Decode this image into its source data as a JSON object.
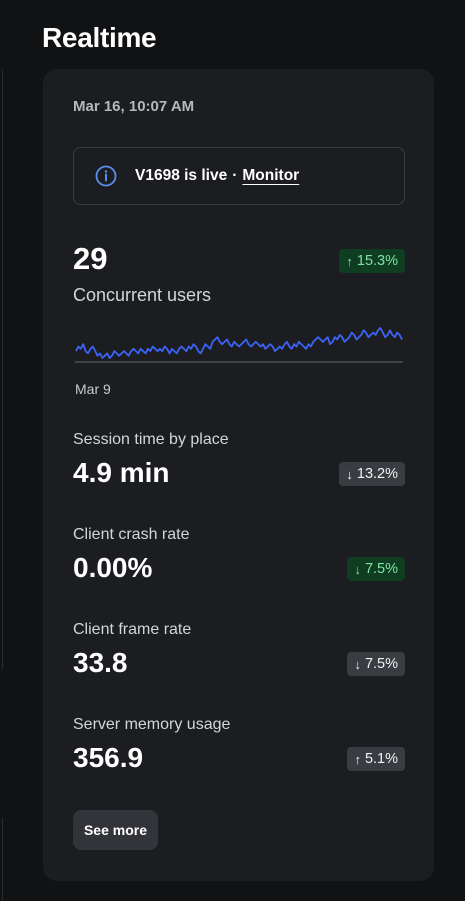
{
  "section": {
    "title": "Realtime"
  },
  "card": {
    "timestamp": "Mar 16, 10:07 AM",
    "banner": {
      "icon": "info-icon",
      "text": "V1698 is live",
      "separator": "·",
      "link": "Monitor"
    },
    "concurrent": {
      "value": "29",
      "label": "Concurrent users",
      "change": {
        "direction": "up",
        "arrow": "↑",
        "text": "15.3%"
      },
      "chart_axis_label": "Mar 9"
    },
    "metrics": [
      {
        "label": "Session time by place",
        "value": "4.9 min",
        "change": {
          "direction": "down",
          "arrow": "↓",
          "text": "13.2%"
        }
      },
      {
        "label": "Client crash rate",
        "value": "0.00%",
        "change": {
          "direction": "up",
          "arrow": "↓",
          "text": "7.5%"
        }
      },
      {
        "label": "Client frame rate",
        "value": "33.8",
        "change": {
          "direction": "down",
          "arrow": "↓",
          "text": "7.5%"
        }
      },
      {
        "label": "Server memory usage",
        "value": "356.9",
        "change": {
          "direction": "down",
          "arrow": "↑",
          "text": "5.1%"
        }
      }
    ],
    "see_more": "See more"
  },
  "colors": {
    "background": "#111214",
    "card": "#1c1d21",
    "sparkline": "#3b63f5",
    "positive_badge_bg": "#0e3d22",
    "positive_badge_text": "#7fe3a4",
    "neutral_badge_bg": "#3a3c41",
    "info_icon": "#5b8def"
  },
  "chart_data": {
    "type": "line",
    "title": "",
    "xlabel": "",
    "ylabel": "",
    "x_start_label": "Mar 9",
    "series": [
      {
        "values": [
          22,
          24,
          23,
          25,
          22,
          21,
          23,
          24,
          22,
          20,
          21,
          19,
          20,
          21,
          19,
          20,
          22,
          21,
          20,
          21,
          22,
          21,
          20,
          22,
          23,
          22,
          21,
          23,
          22,
          21,
          23,
          22,
          24,
          23,
          22,
          23,
          22,
          24,
          23,
          21,
          23,
          22,
          21,
          23,
          24,
          23,
          22,
          24,
          23,
          25,
          24,
          22,
          21,
          23,
          25,
          24,
          23,
          26,
          27,
          28,
          26,
          25,
          26,
          27,
          25,
          24,
          26,
          25,
          24,
          25,
          26,
          27,
          25,
          24,
          25,
          26,
          25,
          24,
          25,
          23,
          24,
          25,
          24,
          22,
          23,
          24,
          23,
          25,
          26,
          24,
          23,
          25,
          24,
          26,
          25,
          24,
          23,
          25,
          24,
          26,
          27,
          28,
          27,
          26,
          27,
          28,
          25,
          26,
          28,
          27,
          29,
          28,
          26,
          27,
          28,
          30,
          29,
          27,
          28,
          29,
          31,
          30,
          28,
          29,
          30,
          29,
          31,
          32,
          30,
          28,
          29,
          31,
          29,
          28,
          30,
          29,
          27
        ]
      }
    ]
  }
}
